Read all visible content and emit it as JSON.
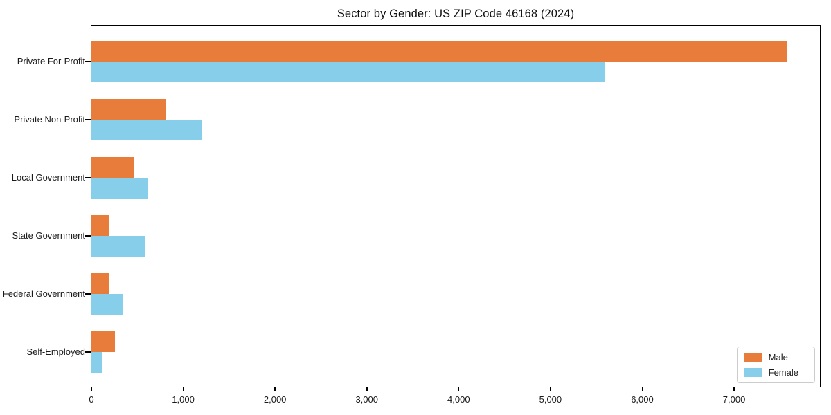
{
  "chart_data": {
    "type": "bar",
    "orientation": "horizontal",
    "title": "Sector by Gender: US ZIP Code 46168 (2024)",
    "categories": [
      "Private For-Profit",
      "Private Non-Profit",
      "Local Government",
      "State Government",
      "Federal Government",
      "Self-Employed"
    ],
    "series": [
      {
        "name": "Male",
        "color": "#E87D3B",
        "values": [
          7570,
          810,
          470,
          190,
          185,
          260
        ]
      },
      {
        "name": "Female",
        "color": "#87CEEB",
        "values": [
          5590,
          1210,
          610,
          580,
          350,
          120
        ]
      }
    ],
    "xlim": [
      0,
      7950
    ],
    "xtick_values": [
      0,
      1000,
      2000,
      3000,
      4000,
      5000,
      6000,
      7000
    ],
    "xtick_labels": [
      "0",
      "1,000",
      "2,000",
      "3,000",
      "4,000",
      "5,000",
      "6,000",
      "7,000"
    ],
    "legend": {
      "position": "lower-right",
      "entries": [
        "Male",
        "Female"
      ]
    },
    "grid": false,
    "axis_color": "#000000",
    "background": "#ffffff"
  }
}
